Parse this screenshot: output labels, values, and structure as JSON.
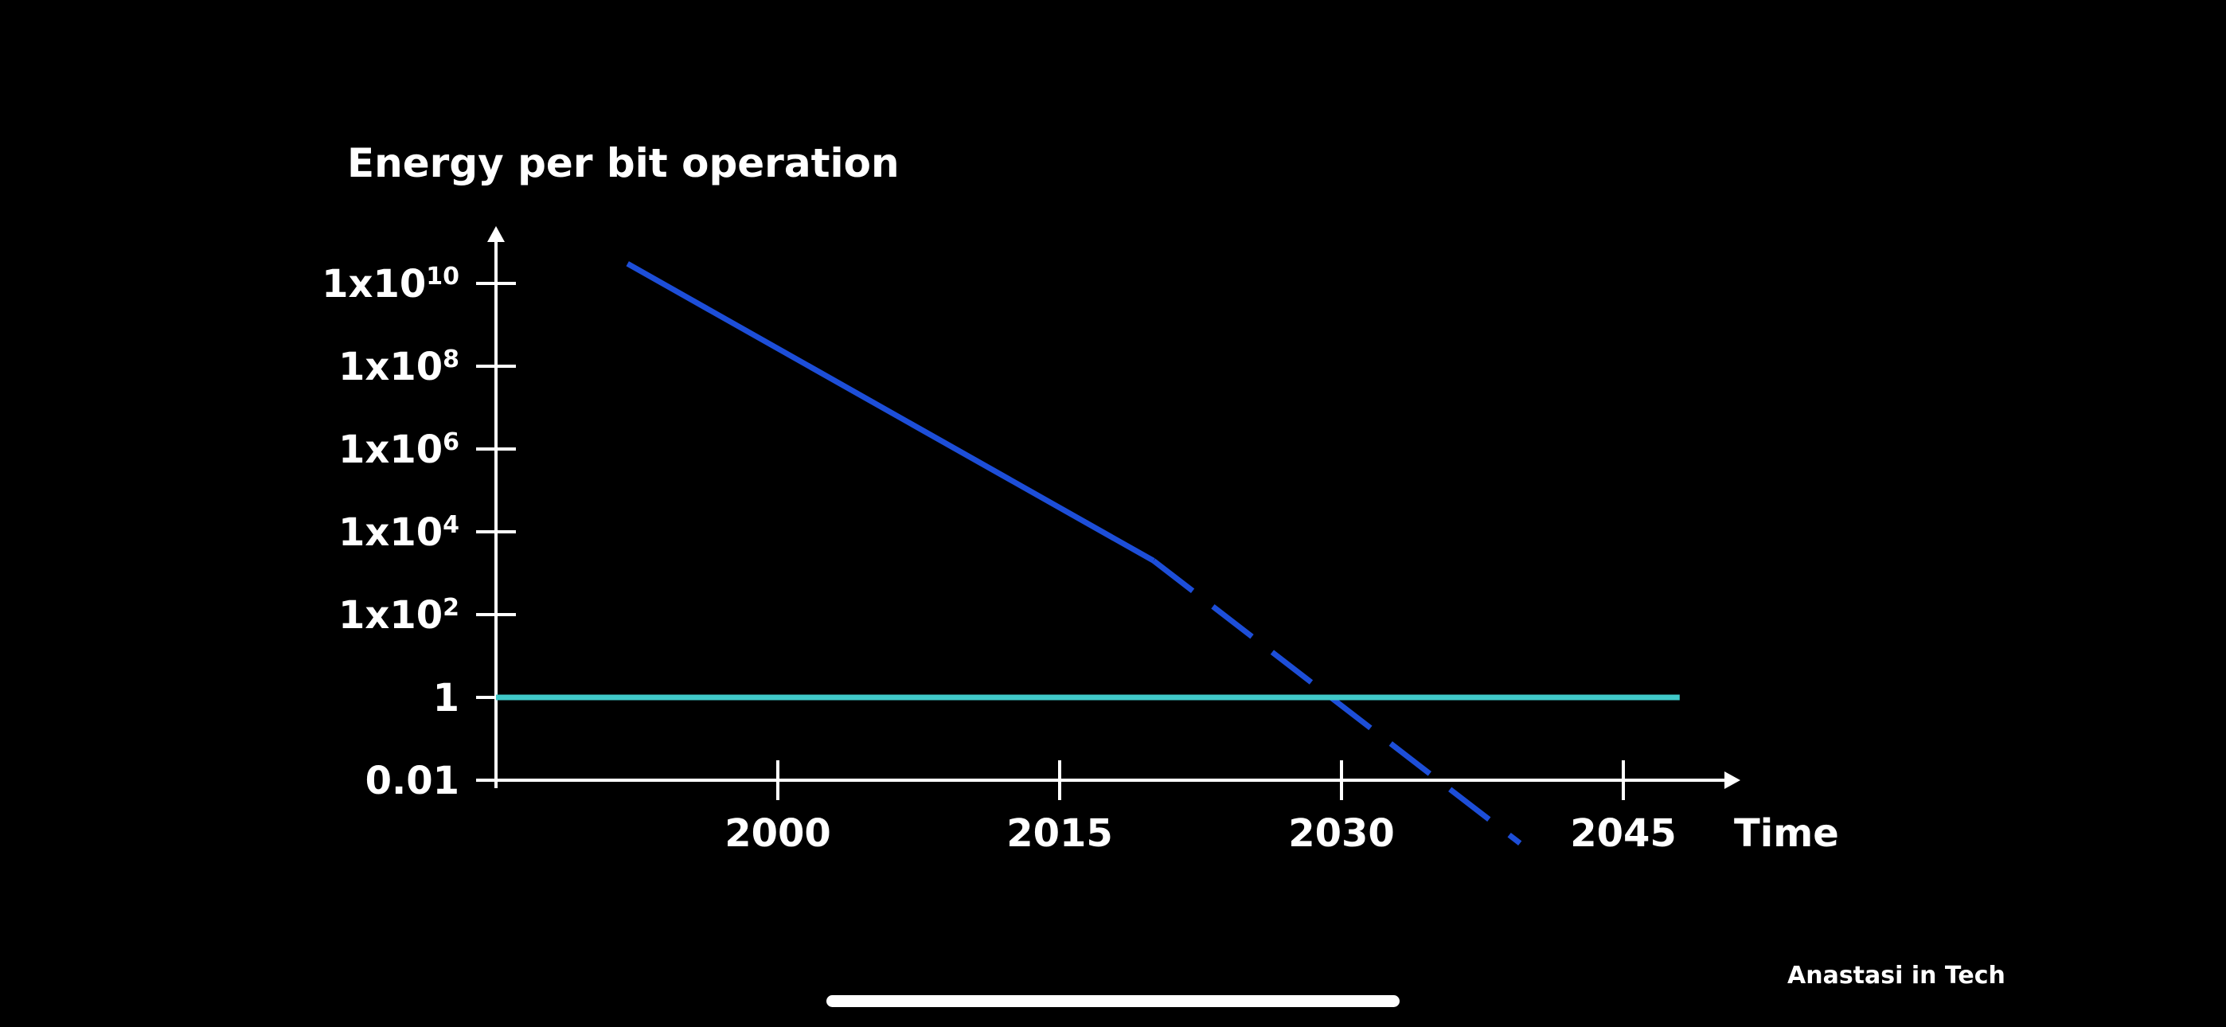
{
  "chart_data": {
    "type": "line",
    "ylabel": "Energy per bit operation",
    "xlabel": "Time",
    "y_scale": "log",
    "y_ticks": [
      {
        "value": 0.01,
        "base": "0.01",
        "exp": ""
      },
      {
        "value": 1,
        "base": "1",
        "exp": ""
      },
      {
        "value": 100,
        "base": "1x10",
        "exp": "2"
      },
      {
        "value": 10000,
        "base": "1x10",
        "exp": "4"
      },
      {
        "value": 1000000,
        "base": "1x10",
        "exp": "6"
      },
      {
        "value": 100000000,
        "base": "1x10",
        "exp": "8"
      },
      {
        "value": 10000000000,
        "base": "1x10",
        "exp": "10"
      }
    ],
    "x_ticks": [
      {
        "value": 2000,
        "label": "2000"
      },
      {
        "value": 2015,
        "label": "2015"
      },
      {
        "value": 2030,
        "label": "2030"
      },
      {
        "value": 2045,
        "label": "2045"
      }
    ],
    "xlim": [
      1985,
      2051
    ],
    "ylim": [
      0.01,
      100000000000
    ],
    "grid": false,
    "series": [
      {
        "style": "solid",
        "color": "#1d4ed8",
        "points": [
          [
            1992,
            30000000000
          ],
          [
            2020,
            2000
          ]
        ]
      },
      {
        "style": "dashed",
        "color": "#1d4ed8",
        "points": [
          [
            2020,
            2000
          ],
          [
            2039.5,
            0.0003
          ]
        ]
      },
      {
        "style": "solid",
        "color": "#40c9c9",
        "points": [
          [
            1985,
            1
          ],
          [
            2048,
            1
          ]
        ]
      }
    ]
  },
  "watermark": "Anastasi in Tech"
}
